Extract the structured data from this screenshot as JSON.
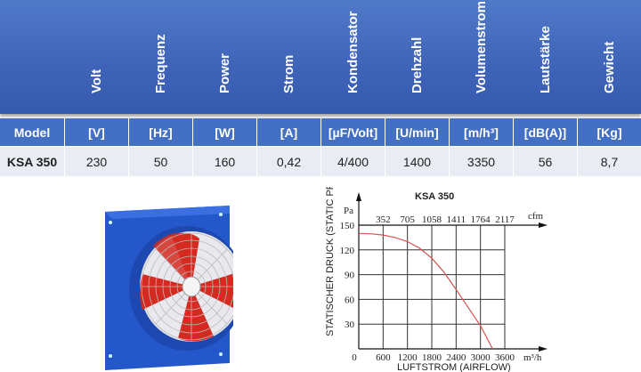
{
  "table": {
    "headers": [
      "Volt",
      "Frequenz",
      "Power",
      "Strom",
      "Kondensator",
      "Drehzahl",
      "Volumenstrom",
      "Lautstärke",
      "Gewicht"
    ],
    "units": [
      "Model",
      "[V]",
      "[Hz]",
      "[W]",
      "[A]",
      "[µF/Volt]",
      "[U/min]",
      "[m/h³]",
      "[dB(A)]",
      "[Kg]"
    ],
    "values": [
      "KSA 350",
      "230",
      "50",
      "160",
      "0,42",
      "4/400",
      "1400",
      "3350",
      "56",
      "8,7"
    ]
  },
  "colors": {
    "header": "#4470c4",
    "row": "#e9ecf3",
    "curve": "#d9534f"
  },
  "chart_data": {
    "type": "line",
    "title": "KSA 350",
    "xlabel": "LUFTSTROM (AIRFLOW)",
    "ylabel": "STATISCHER DRUCK (STATIC PRESSURE)",
    "y_unit": "Pa",
    "x_unit": "m³/h",
    "x2_unit": "cfm",
    "xlim": [
      0,
      3600
    ],
    "ylim": [
      0,
      150
    ],
    "x_ticks": [
      "0",
      "600",
      "1200",
      "1800",
      "2400",
      "3000",
      "3600"
    ],
    "x_tick_values": [
      0,
      600,
      1200,
      1800,
      2400,
      3000,
      3600
    ],
    "x2_ticks": [
      "352",
      "705",
      "1058",
      "1411",
      "1764",
      "2117"
    ],
    "y_ticks": [
      "30",
      "60",
      "90",
      "120",
      "150"
    ],
    "y_tick_values": [
      30,
      60,
      90,
      120,
      150
    ],
    "grid": true,
    "series": [
      {
        "name": "KSA 350",
        "x": [
          0,
          300,
          600,
          900,
          1200,
          1500,
          1800,
          2100,
          2400,
          2700,
          3000,
          3300
        ],
        "y": [
          140,
          139.5,
          138,
          135,
          130,
          122,
          110,
          93,
          72,
          50,
          28,
          0
        ]
      }
    ]
  }
}
